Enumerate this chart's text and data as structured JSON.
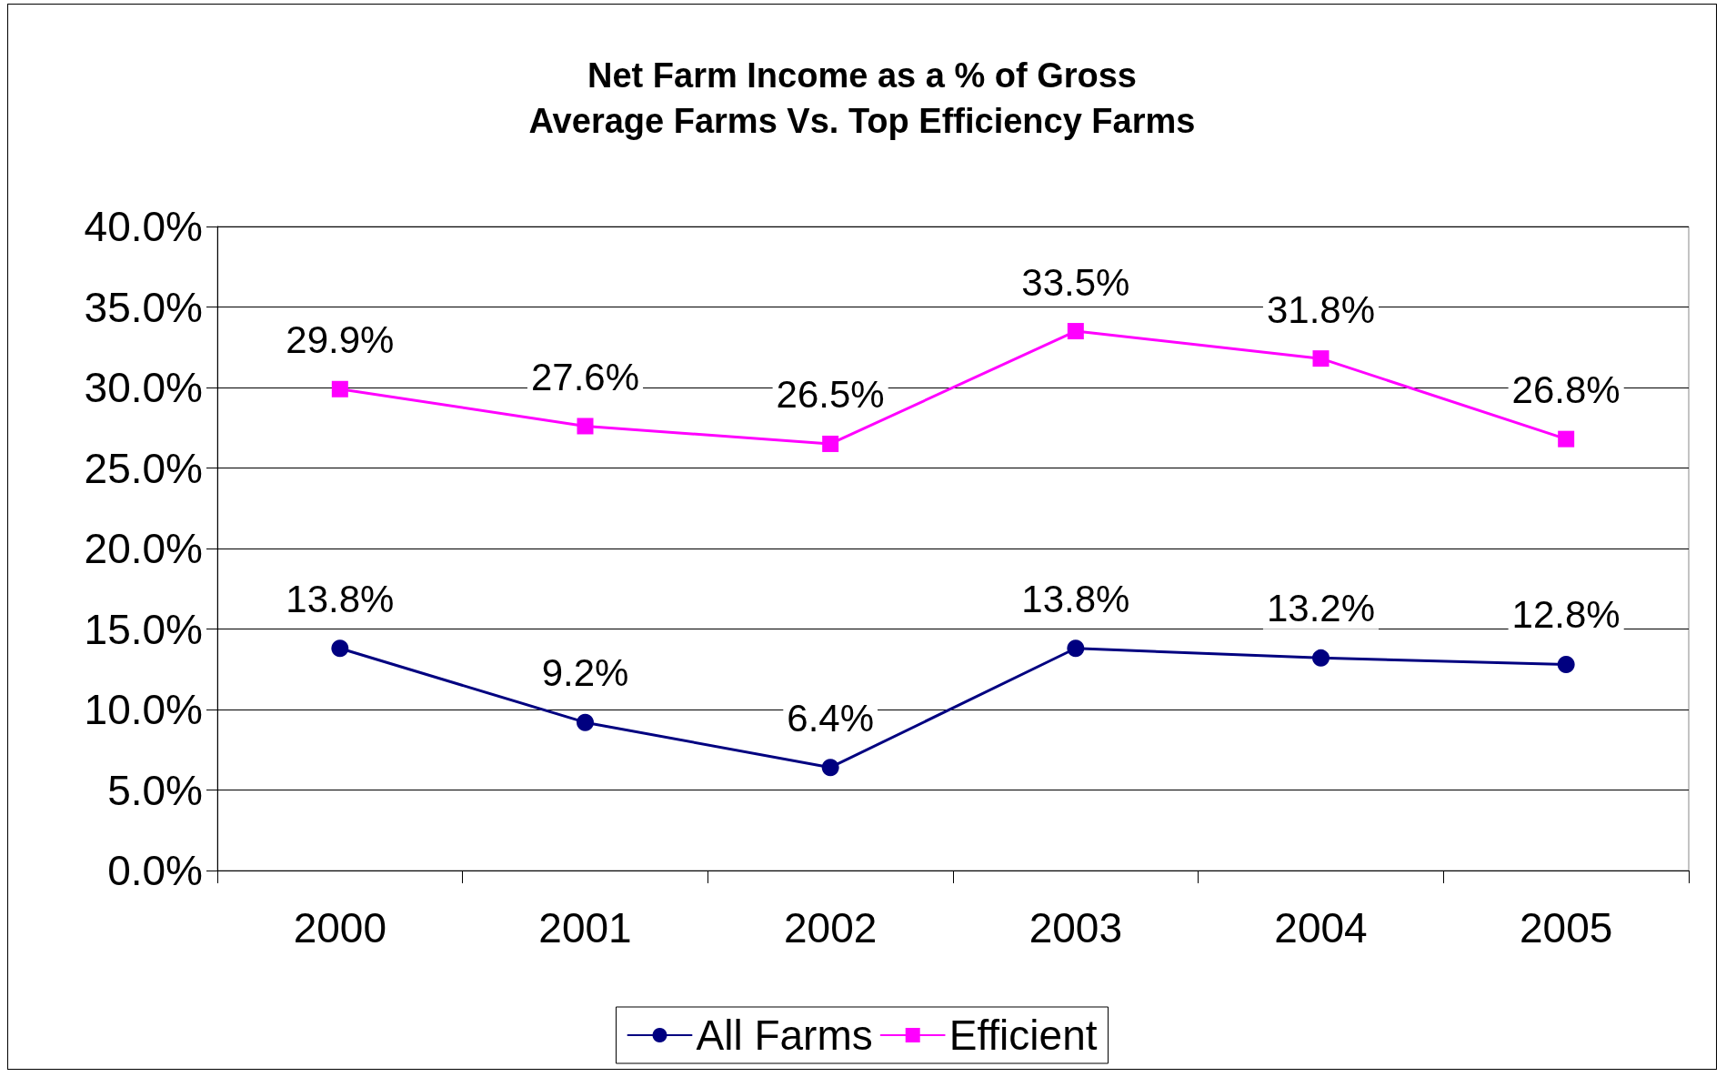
{
  "chart_data": {
    "type": "line",
    "title": "Net Farm Income as a % of Gross\nAverage Farms Vs. Top Efficiency Farms",
    "categories": [
      "2000",
      "2001",
      "2002",
      "2003",
      "2004",
      "2005"
    ],
    "series": [
      {
        "name": "All Farms",
        "color": "#000080",
        "marker": "circle",
        "values": [
          13.8,
          9.2,
          6.4,
          13.8,
          13.2,
          12.8
        ],
        "value_labels": [
          "13.8%",
          "9.2%",
          "6.4%",
          "13.8%",
          "13.2%",
          "12.8%"
        ]
      },
      {
        "name": "Efficient",
        "color": "#ff00ff",
        "marker": "square",
        "values": [
          29.9,
          27.6,
          26.5,
          33.5,
          31.8,
          26.8
        ],
        "value_labels": [
          "29.9%",
          "27.6%",
          "26.5%",
          "33.5%",
          "31.8%",
          "26.8%"
        ]
      }
    ],
    "ylim": [
      0,
      40
    ],
    "yticks": [
      {
        "value": 0,
        "label": "0.0%"
      },
      {
        "value": 5,
        "label": "5.0%"
      },
      {
        "value": 10,
        "label": "10.0%"
      },
      {
        "value": 15,
        "label": "15.0%"
      },
      {
        "value": 20,
        "label": "20.0%"
      },
      {
        "value": 25,
        "label": "25.0%"
      },
      {
        "value": 30,
        "label": "30.0%"
      },
      {
        "value": 35,
        "label": "35.0%"
      },
      {
        "value": 40,
        "label": "40.0%"
      }
    ],
    "grid": "y",
    "legend": "bottom",
    "line_style": "solid"
  }
}
